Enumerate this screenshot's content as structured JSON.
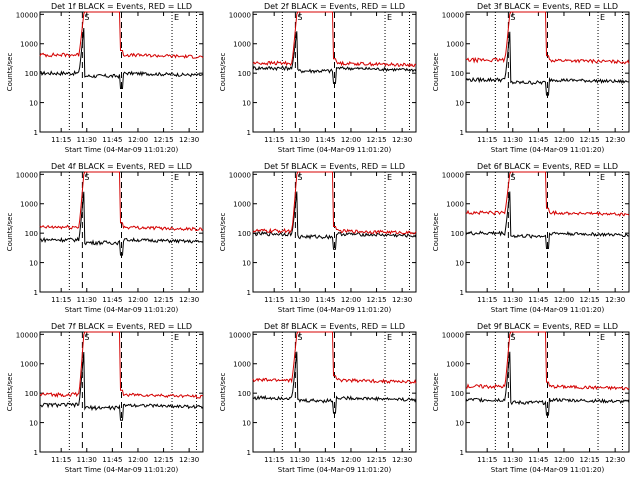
{
  "chart_data": [
    {
      "type": "line",
      "title": "Det 1f BLACK = Events, RED = LLD",
      "xlabel": "Start Time (04-Mar-09 11:01:20)",
      "ylabel": "Counts/sec",
      "xticks": [
        "11:15",
        "11:30",
        "11:45",
        "12:00",
        "12:15",
        "12:30"
      ],
      "yticks": [
        "1",
        "10",
        "100",
        "1000",
        "10000"
      ],
      "ylim": [
        1,
        12000
      ],
      "scale_y": "log",
      "legend": "none",
      "markers": [
        "S",
        "E"
      ],
      "colors": {
        "events": "#000000",
        "lld": "#d40000"
      },
      "series": [
        {
          "name": "Events",
          "base": 100,
          "peak": 4000
        },
        {
          "name": "LLD",
          "base": 420,
          "peak": 12000
        }
      ]
    },
    {
      "type": "line",
      "title": "Det 2f BLACK = Events, RED = LLD",
      "xlabel": "Start Time (04-Mar-09 11:01:20)",
      "ylabel": "Counts/sec",
      "xticks": [
        "11:15",
        "11:30",
        "11:45",
        "12:00",
        "12:15",
        "12:30"
      ],
      "yticks": [
        "1",
        "10",
        "100",
        "1000",
        "10000"
      ],
      "ylim": [
        1,
        12000
      ],
      "scale_y": "log",
      "legend": "none",
      "markers": [
        "S",
        "E"
      ],
      "colors": {
        "events": "#000000",
        "lld": "#d40000"
      },
      "series": [
        {
          "name": "Events",
          "base": 150,
          "peak": 3000
        },
        {
          "name": "LLD",
          "base": 220,
          "peak": 12000
        }
      ]
    },
    {
      "type": "line",
      "title": "Det 3f BLACK = Events, RED = LLD",
      "xlabel": "Start Time (04-Mar-09 11:01:20)",
      "ylabel": "Counts/sec",
      "xticks": [
        "11:15",
        "11:30",
        "11:45",
        "12:00",
        "12:15",
        "12:30"
      ],
      "yticks": [
        "1",
        "10",
        "100",
        "1000",
        "10000"
      ],
      "ylim": [
        1,
        12000
      ],
      "scale_y": "log",
      "legend": "none",
      "markers": [
        "S",
        "E"
      ],
      "colors": {
        "events": "#000000",
        "lld": "#d40000"
      },
      "series": [
        {
          "name": "Events",
          "base": 60,
          "peak": 3000
        },
        {
          "name": "LLD",
          "base": 280,
          "peak": 12000
        }
      ]
    },
    {
      "type": "line",
      "title": "Det 4f BLACK = Events, RED = LLD",
      "xlabel": "Start Time (04-Mar-09 11:01:20)",
      "ylabel": "Counts/sec",
      "xticks": [
        "11:15",
        "11:30",
        "11:45",
        "12:00",
        "12:15",
        "12:30"
      ],
      "yticks": [
        "1",
        "10",
        "100",
        "1000",
        "10000"
      ],
      "ylim": [
        1,
        12000
      ],
      "scale_y": "log",
      "legend": "none",
      "markers": [
        "S",
        "E"
      ],
      "colors": {
        "events": "#000000",
        "lld": "#d40000"
      },
      "series": [
        {
          "name": "Events",
          "base": 60,
          "peak": 3000
        },
        {
          "name": "LLD",
          "base": 160,
          "peak": 12000
        }
      ]
    },
    {
      "type": "line",
      "title": "Det 5f BLACK = Events, RED = LLD",
      "xlabel": "Start Time (04-Mar-09 11:01:20)",
      "ylabel": "Counts/sec",
      "xticks": [
        "11:15",
        "11:30",
        "11:45",
        "12:00",
        "12:15",
        "12:30"
      ],
      "yticks": [
        "1",
        "10",
        "100",
        "1000",
        "10000"
      ],
      "ylim": [
        1,
        12000
      ],
      "scale_y": "log",
      "legend": "none",
      "markers": [
        "S",
        "E"
      ],
      "colors": {
        "events": "#000000",
        "lld": "#d40000"
      },
      "series": [
        {
          "name": "Events",
          "base": 95,
          "peak": 3000
        },
        {
          "name": "LLD",
          "base": 120,
          "peak": 12000
        }
      ]
    },
    {
      "type": "line",
      "title": "Det 6f BLACK = Events, RED = LLD",
      "xlabel": "Start Time (04-Mar-09 11:01:20)",
      "ylabel": "Counts/sec",
      "xticks": [
        "11:15",
        "11:30",
        "11:45",
        "12:00",
        "12:15",
        "12:30"
      ],
      "yticks": [
        "1",
        "10",
        "100",
        "1000",
        "10000"
      ],
      "ylim": [
        1,
        12000
      ],
      "scale_y": "log",
      "legend": "none",
      "markers": [
        "S",
        "E"
      ],
      "colors": {
        "events": "#000000",
        "lld": "#d40000"
      },
      "series": [
        {
          "name": "Events",
          "base": 100,
          "peak": 3000
        },
        {
          "name": "LLD",
          "base": 500,
          "peak": 12000
        }
      ]
    },
    {
      "type": "line",
      "title": "Det 7f BLACK = Events, RED = LLD",
      "xlabel": "Start Time (04-Mar-09 11:01:20)",
      "ylabel": "Counts/sec",
      "xticks": [
        "11:15",
        "11:30",
        "11:45",
        "12:00",
        "12:15",
        "12:30"
      ],
      "yticks": [
        "1",
        "10",
        "100",
        "1000",
        "10000"
      ],
      "ylim": [
        1,
        12000
      ],
      "scale_y": "log",
      "legend": "none",
      "markers": [
        "S",
        "E"
      ],
      "colors": {
        "events": "#000000",
        "lld": "#d40000"
      },
      "series": [
        {
          "name": "Events",
          "base": 40,
          "peak": 3000
        },
        {
          "name": "LLD",
          "base": 90,
          "peak": 12000
        }
      ]
    },
    {
      "type": "line",
      "title": "Det 8f BLACK = Events, RED = LLD",
      "xlabel": "Start Time (04-Mar-09 11:01:20)",
      "ylabel": "Counts/sec",
      "xticks": [
        "11:15",
        "11:30",
        "11:45",
        "12:00",
        "12:15",
        "12:30"
      ],
      "yticks": [
        "1",
        "10",
        "100",
        "1000",
        "10000"
      ],
      "ylim": [
        1,
        12000
      ],
      "scale_y": "log",
      "legend": "none",
      "markers": [
        "S",
        "E"
      ],
      "colors": {
        "events": "#000000",
        "lld": "#d40000"
      },
      "series": [
        {
          "name": "Events",
          "base": 70,
          "peak": 3000
        },
        {
          "name": "LLD",
          "base": 280,
          "peak": 12000
        }
      ]
    },
    {
      "type": "line",
      "title": "Det 9f BLACK = Events, RED = LLD",
      "xlabel": "Start Time (04-Mar-09 11:01:20)",
      "ylabel": "Counts/sec",
      "xticks": [
        "11:15",
        "11:30",
        "11:45",
        "12:00",
        "12:15",
        "12:30"
      ],
      "yticks": [
        "1",
        "10",
        "100",
        "1000",
        "10000"
      ],
      "ylim": [
        1,
        12000
      ],
      "scale_y": "log",
      "legend": "none",
      "markers": [
        "S",
        "E"
      ],
      "colors": {
        "events": "#000000",
        "lld": "#d40000"
      },
      "series": [
        {
          "name": "Events",
          "base": 60,
          "peak": 3000
        },
        {
          "name": "LLD",
          "base": 170,
          "peak": 12000
        }
      ]
    }
  ]
}
